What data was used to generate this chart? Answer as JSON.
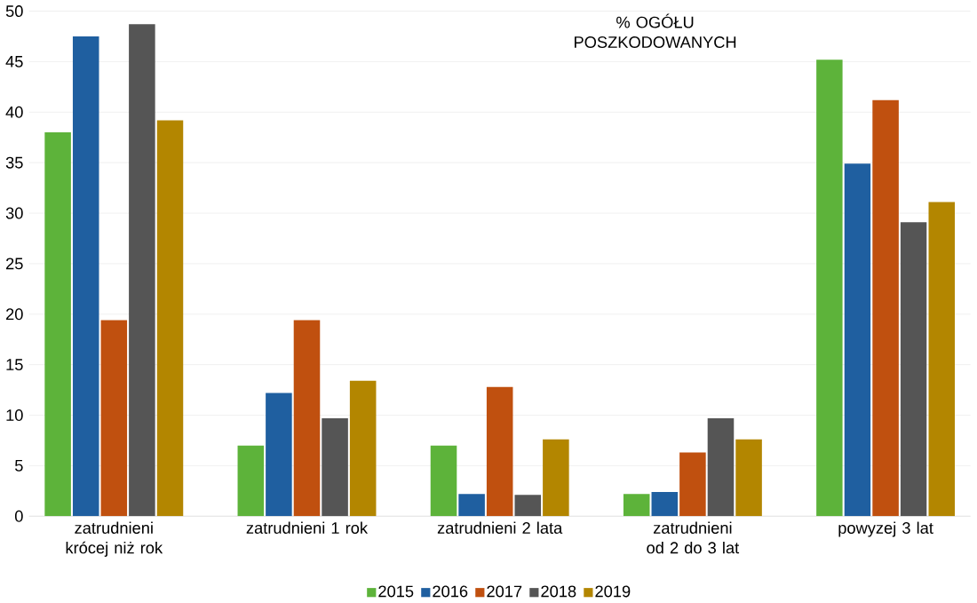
{
  "chart_data": {
    "type": "bar",
    "title": "% OGÓŁU POSZKODOWANYCH",
    "categories": [
      "zatrudnieni krócej niż rok",
      "zatrudnieni 1 rok",
      "zatrudnieni 2 lata",
      "zatrudnieni od 2 do 3 lat",
      "powyzej 3 lat"
    ],
    "series": [
      {
        "name": "2015",
        "color": "#5db33a",
        "values": [
          38.0,
          7.0,
          7.0,
          2.2,
          45.2
        ]
      },
      {
        "name": "2016",
        "color": "#1f5fa0",
        "values": [
          47.5,
          12.2,
          2.2,
          2.4,
          34.9
        ]
      },
      {
        "name": "2017",
        "color": "#c0500f",
        "values": [
          19.4,
          19.4,
          12.8,
          6.3,
          41.2
        ]
      },
      {
        "name": "2018",
        "color": "#555555",
        "values": [
          48.7,
          9.7,
          2.1,
          9.7,
          29.1
        ]
      },
      {
        "name": "2019",
        "color": "#b38600",
        "values": [
          39.2,
          13.4,
          7.6,
          7.6,
          31.1
        ]
      }
    ],
    "ylim": [
      0,
      50
    ],
    "yticks": [
      0,
      5,
      10,
      15,
      20,
      25,
      30,
      35,
      40,
      45,
      50
    ],
    "grid": "y",
    "legend": "bottom"
  }
}
